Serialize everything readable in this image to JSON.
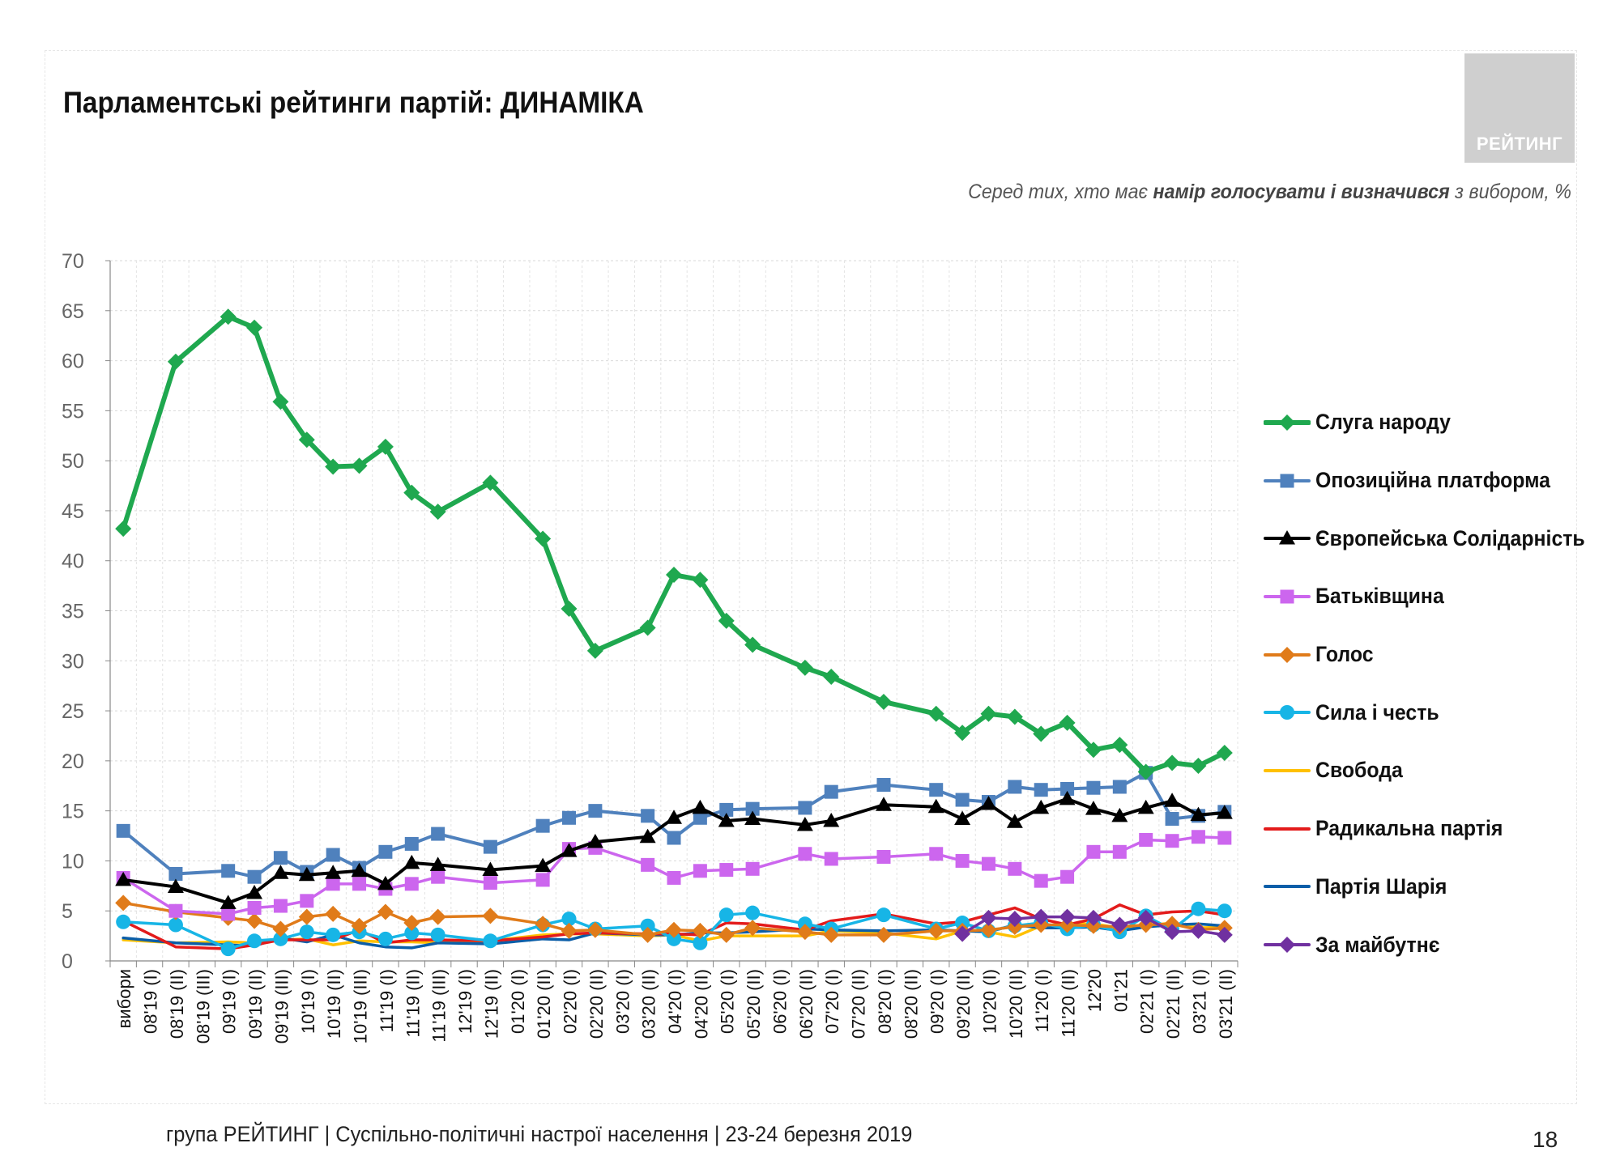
{
  "title": "Парламентські рейтинги партій: ДИНАМІКА",
  "logo_text": "РЕЙТИНГ",
  "subtitle": {
    "prefix": "Серед тих, хто має ",
    "bold": "намір голосувати і визначився",
    "suffix": " з вибором, %"
  },
  "footer": "група РЕЙТИНГ | Суспільно-політичні настрої населення  | 23-24 березня 2019",
  "page_number": "18",
  "colors": {
    "sluha": "#1fa84f",
    "opzzh": "#4f81bd",
    "es": "#000000",
    "batk": "#cc66ee",
    "holos": "#e07b1a",
    "syla": "#17b5e6",
    "svoboda": "#ffc000",
    "radical": "#e31b1b",
    "sharii": "#0b5ea8",
    "maibutne": "#7030a0"
  },
  "chart_data": {
    "type": "line",
    "ylim": [
      0,
      70
    ],
    "yticks": [
      0,
      5,
      10,
      15,
      20,
      25,
      30,
      35,
      40,
      45,
      50,
      55,
      60,
      65,
      70
    ],
    "grid": true,
    "legend_position": "right",
    "categories": [
      "вибори",
      "08'19 (I)",
      "08'19 (II)",
      "08'19 (III)",
      "09'19 (I)",
      "09'19 (II)",
      "09'19 (III)",
      "10'19 (I)",
      "10'19 (II)",
      "10'19 (III)",
      "11'19 (I)",
      "11'19 (II)",
      "11'19 (III)",
      "12'19 (I)",
      "12'19 (II)",
      "01'20 (I)",
      "01'20 (II)",
      "02'20 (I)",
      "02'20 (II)",
      "03'20 (I)",
      "03'20 (II)",
      "04'20 (I)",
      "04'20 (II)",
      "05'20 (I)",
      "05'20 (II)",
      "06'20 (I)",
      "06'20 (II)",
      "07'20 (I)",
      "07'20 (II)",
      "08'20 (I)",
      "08'20 (II)",
      "09'20 (I)",
      "09'20 (II)",
      "10'20 (I)",
      "10'20 (II)",
      "11'20 (I)",
      "11'20 (II)",
      "12'20",
      "01'21",
      "02'21 (I)",
      "02'21 (II)",
      "03'21 (I)",
      "03'21 (II)"
    ],
    "series": [
      {
        "key": "sluha",
        "name": "Слуга народу",
        "marker": "diamond",
        "values": [
          43.2,
          null,
          59.9,
          null,
          64.4,
          63.3,
          55.9,
          52.1,
          49.4,
          49.5,
          51.4,
          46.8,
          44.9,
          null,
          47.8,
          null,
          42.2,
          35.2,
          31.0,
          null,
          33.3,
          38.6,
          38.1,
          34.0,
          31.6,
          null,
          29.3,
          28.4,
          null,
          25.9,
          null,
          24.7,
          22.8,
          24.7,
          24.4,
          22.7,
          23.8,
          21.1,
          21.6,
          18.9,
          19.8,
          19.5,
          20.8
        ]
      },
      {
        "key": "opzzh",
        "name": "Опозиційна платформа",
        "marker": "square",
        "values": [
          13.0,
          null,
          8.7,
          null,
          9.0,
          8.4,
          10.3,
          8.9,
          10.6,
          9.3,
          10.9,
          11.7,
          12.7,
          null,
          11.4,
          null,
          13.5,
          14.3,
          15.0,
          null,
          14.5,
          12.3,
          14.3,
          15.1,
          15.2,
          null,
          15.3,
          16.9,
          null,
          17.6,
          null,
          17.1,
          16.1,
          15.9,
          17.4,
          17.1,
          17.2,
          17.3,
          17.4,
          18.8,
          14.2,
          14.5,
          14.9
        ]
      },
      {
        "key": "es",
        "name": "Європейська Солідарність",
        "marker": "triangle",
        "values": [
          8.1,
          null,
          7.4,
          null,
          5.8,
          6.8,
          8.8,
          8.6,
          8.8,
          9.0,
          7.7,
          9.8,
          9.6,
          null,
          9.1,
          null,
          9.5,
          11.0,
          11.9,
          null,
          12.4,
          14.3,
          15.3,
          14.0,
          14.2,
          null,
          13.6,
          14.0,
          null,
          15.6,
          null,
          15.4,
          14.2,
          15.7,
          13.9,
          15.3,
          16.2,
          15.2,
          14.5,
          15.3,
          16.0,
          14.6,
          14.8
        ]
      },
      {
        "key": "batk",
        "name": "Батьківщина",
        "marker": "square",
        "values": [
          8.3,
          null,
          5.0,
          null,
          4.7,
          5.3,
          5.5,
          6.0,
          7.7,
          7.7,
          7.2,
          7.7,
          8.4,
          null,
          7.8,
          null,
          8.1,
          11.2,
          11.3,
          null,
          9.6,
          8.3,
          9.0,
          9.1,
          9.2,
          null,
          10.7,
          10.2,
          null,
          10.4,
          null,
          10.7,
          10.0,
          9.7,
          9.2,
          8.0,
          8.4,
          10.9,
          10.9,
          12.1,
          12.0,
          12.4,
          12.3
        ]
      },
      {
        "key": "holos",
        "name": "Голос",
        "marker": "diamond",
        "values": [
          5.8,
          null,
          4.9,
          null,
          4.3,
          4.0,
          3.2,
          4.4,
          4.7,
          3.5,
          4.9,
          3.8,
          4.4,
          null,
          4.5,
          null,
          3.7,
          3.0,
          3.1,
          null,
          2.6,
          3.1,
          3.0,
          2.6,
          3.3,
          null,
          2.9,
          2.6,
          null,
          2.6,
          null,
          3.0,
          3.0,
          3.1,
          3.4,
          3.6,
          3.6,
          3.5,
          3.4,
          3.6,
          3.7,
          3.1,
          3.3
        ]
      },
      {
        "key": "syla",
        "name": "Сила і честь",
        "marker": "circle",
        "values": [
          3.9,
          null,
          3.6,
          null,
          1.2,
          2.0,
          2.2,
          2.9,
          2.6,
          2.9,
          2.2,
          2.8,
          2.6,
          null,
          2.0,
          null,
          3.6,
          4.2,
          3.2,
          null,
          3.5,
          2.2,
          1.8,
          4.6,
          4.8,
          null,
          3.7,
          3.2,
          null,
          4.6,
          null,
          3.2,
          3.8,
          3.0,
          3.5,
          3.8,
          3.2,
          3.6,
          2.9,
          4.5,
          3.1,
          5.2,
          5.0
        ]
      },
      {
        "key": "svoboda",
        "name": "Свобода",
        "marker": "none",
        "values": [
          2.1,
          null,
          1.8,
          null,
          1.9,
          1.8,
          2.1,
          2.2,
          1.6,
          2.0,
          1.9,
          1.9,
          1.8,
          null,
          2.0,
          null,
          2.6,
          2.7,
          2.7,
          null,
          2.5,
          2.6,
          2.0,
          2.5,
          2.5,
          null,
          2.5,
          3.0,
          null,
          2.8,
          null,
          2.2,
          3.0,
          2.9,
          2.4,
          3.5,
          3.7,
          3.7,
          3.3,
          3.5,
          3.8,
          3.3,
          3.4
        ]
      },
      {
        "key": "radical",
        "name": "Радикальна партія",
        "marker": "none",
        "values": [
          4.0,
          null,
          1.4,
          null,
          1.2,
          1.6,
          2.1,
          2.1,
          2.1,
          3.1,
          1.8,
          2.1,
          2.1,
          null,
          2.0,
          null,
          2.4,
          2.7,
          2.8,
          null,
          2.7,
          2.7,
          2.6,
          3.8,
          3.7,
          null,
          3.1,
          4.0,
          null,
          4.7,
          null,
          3.7,
          3.9,
          4.6,
          5.3,
          4.2,
          3.6,
          4.2,
          5.6,
          4.6,
          4.9,
          5.0,
          4.6
        ]
      },
      {
        "key": "sharii",
        "name": "Партія Шарія",
        "marker": "none",
        "values": [
          2.3,
          null,
          1.8,
          null,
          1.6,
          1.5,
          2.3,
          1.9,
          2.6,
          1.8,
          1.4,
          1.3,
          1.8,
          null,
          1.7,
          null,
          2.2,
          2.1,
          2.8,
          null,
          2.6,
          2.6,
          2.8,
          2.8,
          2.9,
          null,
          3.2,
          3.1,
          null,
          3.0,
          null,
          3.1,
          3.0,
          2.9,
          3.6,
          3.3,
          3.3,
          3.4,
          3.0,
          3.4,
          3.6,
          3.7,
          3.5
        ]
      },
      {
        "key": "maibutne",
        "name": "За майбутнє",
        "marker": "diamond",
        "values": [
          null,
          null,
          null,
          null,
          null,
          null,
          null,
          null,
          null,
          null,
          null,
          null,
          null,
          null,
          null,
          null,
          null,
          null,
          null,
          null,
          null,
          null,
          null,
          null,
          null,
          null,
          null,
          null,
          null,
          null,
          null,
          null,
          2.7,
          4.3,
          4.2,
          4.4,
          4.4,
          4.3,
          3.6,
          4.3,
          2.9,
          3.0,
          2.6
        ]
      }
    ]
  }
}
